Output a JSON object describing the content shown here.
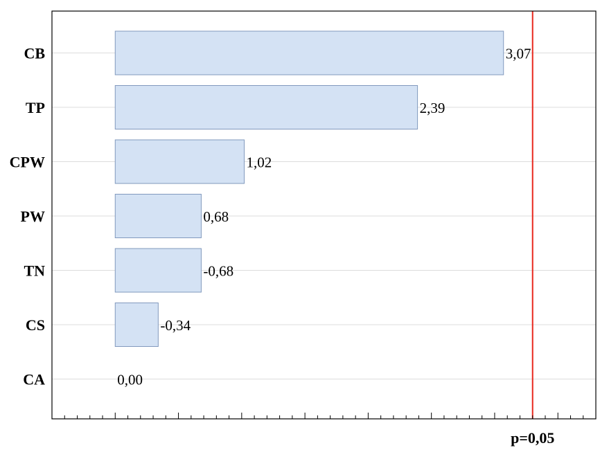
{
  "chart_data": {
    "type": "bar",
    "orientation": "horizontal",
    "categories": [
      "CB",
      "TP",
      "CPW",
      "PW",
      "TN",
      "CS",
      "CA"
    ],
    "values": [
      3.07,
      2.39,
      1.02,
      0.68,
      -0.68,
      -0.34,
      0.0
    ],
    "value_labels": [
      "3,07",
      "2,39",
      "1,02",
      "0,68",
      "-0,68",
      "-0,34",
      "0,00"
    ],
    "bar_length_basis": "absolute value",
    "reference_line": {
      "label": "p=0,05",
      "value": 3.3,
      "color": "#e8261b"
    },
    "xlim": [
      -0.5,
      3.8
    ],
    "grid": true,
    "title": "",
    "xlabel": "",
    "ylabel": "",
    "bar_fill_color": "#d4e2f4",
    "bar_edge_color": "#8199bd"
  }
}
